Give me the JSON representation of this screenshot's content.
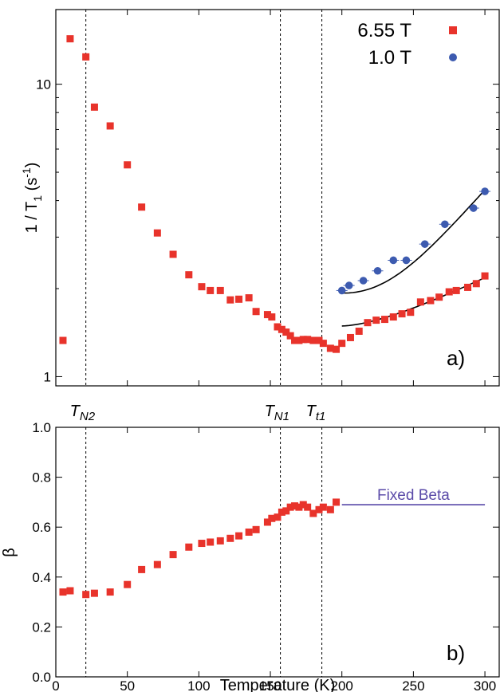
{
  "colors": {
    "series_6_55T": "#e8332b",
    "series_1_0T": "#3d5bb0",
    "fit_curve": "#000000",
    "fixed_beta": "#5a4aa8",
    "axis": "#000000",
    "marker_line": "#000000"
  },
  "markers": [
    {
      "name": "T",
      "sub": "N2",
      "x": 21
    },
    {
      "name": "T",
      "sub": "N1",
      "x": 157
    },
    {
      "name": "T",
      "sub": "t1",
      "x": 186
    }
  ],
  "chart_data": [
    {
      "type": "scatter",
      "panel_label": "a)",
      "ylabel": "1 / T₁ (s⁻¹)",
      "ylabel_base": "1 / T",
      "ylabel_sub": "1",
      "ylabel_tail": " (s",
      "ylabel_sup": "-1",
      "ylabel_end": ")",
      "yscale": "log",
      "xlim": [
        0,
        310
      ],
      "ylim": [
        0.93,
        18.0
      ],
      "yticks": [
        1,
        10
      ],
      "ytick_labels": [
        "1",
        "10"
      ],
      "legend_position": "top-right",
      "series": [
        {
          "name": "6.55 T",
          "marker": "square",
          "x": [
            5,
            10,
            21,
            27,
            38,
            50,
            60,
            71,
            82,
            93,
            102,
            108,
            115,
            122,
            128,
            135,
            140,
            148,
            151,
            155,
            158,
            161,
            164,
            167,
            170,
            173,
            176,
            180,
            184,
            187,
            192,
            196,
            200,
            206,
            212,
            218,
            224,
            230,
            236,
            242,
            248,
            255,
            262,
            268,
            275,
            280,
            288,
            294,
            300
          ],
          "y": [
            1.33,
            14.3,
            12.4,
            8.35,
            7.2,
            5.3,
            3.8,
            3.1,
            2.62,
            2.23,
            2.03,
            1.97,
            1.97,
            1.83,
            1.84,
            1.86,
            1.67,
            1.63,
            1.6,
            1.48,
            1.45,
            1.42,
            1.38,
            1.33,
            1.33,
            1.34,
            1.34,
            1.33,
            1.33,
            1.3,
            1.25,
            1.24,
            1.3,
            1.36,
            1.43,
            1.53,
            1.56,
            1.57,
            1.6,
            1.64,
            1.66,
            1.8,
            1.82,
            1.87,
            1.95,
            1.97,
            2.02,
            2.08,
            2.21
          ]
        },
        {
          "name": "1.0 T",
          "marker": "circle",
          "x": [
            200,
            205,
            215,
            225,
            236,
            245,
            258,
            272,
            292,
            300
          ],
          "y": [
            1.97,
            2.05,
            2.13,
            2.3,
            2.5,
            2.5,
            2.84,
            3.32,
            3.77,
            4.3
          ]
        }
      ],
      "fits": [
        {
          "x_range": [
            200,
            300
          ],
          "y_at": [
            [
              200,
              1.93
            ],
            [
              300,
              4.35
            ]
          ],
          "exponent": 2.2
        },
        {
          "x_range": [
            200,
            300
          ],
          "y_at": [
            [
              200,
              1.49
            ],
            [
              300,
              2.18
            ]
          ],
          "exponent": 1.6
        }
      ]
    },
    {
      "type": "scatter",
      "panel_label": "b)",
      "xlabel": "Temperature (K)",
      "ylabel": "β",
      "xlim": [
        0,
        310
      ],
      "ylim": [
        0.0,
        1.0
      ],
      "xticks": [
        0,
        50,
        100,
        150,
        200,
        250,
        300
      ],
      "xtick_labels": [
        "0",
        "50",
        "100",
        "150",
        "200",
        "250",
        "300"
      ],
      "yticks": [
        0.0,
        0.2,
        0.4,
        0.6,
        0.8,
        1.0
      ],
      "ytick_labels": [
        "0.0",
        "0.2",
        "0.4",
        "0.6",
        "0.8",
        "1.0"
      ],
      "series": [
        {
          "name": "6.55 T",
          "marker": "square",
          "x": [
            5,
            10,
            21,
            27,
            38,
            50,
            60,
            71,
            82,
            93,
            102,
            108,
            115,
            122,
            128,
            135,
            140,
            148,
            151,
            155,
            158,
            161,
            164,
            167,
            170,
            173,
            176,
            180,
            184,
            187,
            192,
            196
          ],
          "y": [
            0.34,
            0.345,
            0.33,
            0.335,
            0.34,
            0.37,
            0.43,
            0.45,
            0.49,
            0.52,
            0.535,
            0.54,
            0.545,
            0.555,
            0.565,
            0.58,
            0.59,
            0.62,
            0.635,
            0.64,
            0.66,
            0.665,
            0.68,
            0.685,
            0.68,
            0.69,
            0.68,
            0.655,
            0.67,
            0.68,
            0.67,
            0.7
          ]
        }
      ],
      "fixed_line": {
        "label": "Fixed Beta",
        "x_range": [
          200,
          300
        ],
        "y": 0.69
      }
    }
  ]
}
